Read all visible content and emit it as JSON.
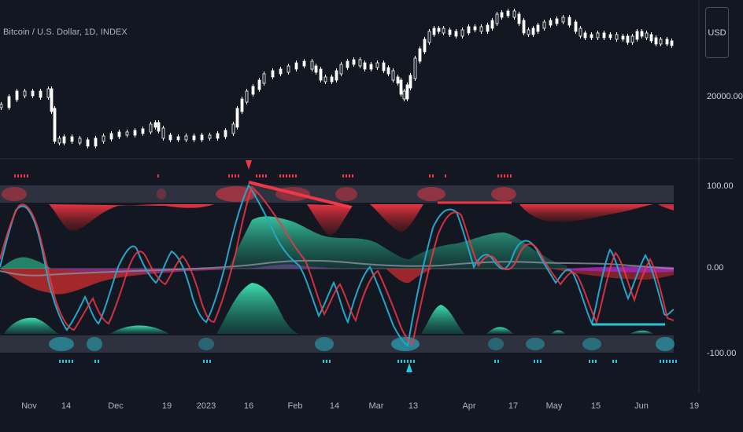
{
  "header": {
    "title": "Bitcoin / U.S. Dollar, 1D, INDEX",
    "currency_button": "USD"
  },
  "price_axis": {
    "label": "20000.00"
  },
  "osc_axis": {
    "labels": [
      "100.00",
      "0.00",
      "-100.00"
    ]
  },
  "time_axis": {
    "ticks": [
      "Nov",
      "14",
      "Dec",
      "19",
      "2023",
      "16",
      "Feb",
      "14",
      "Mar",
      "13",
      "Apr",
      "17",
      "May",
      "15",
      "Jun",
      "19"
    ]
  },
  "colors": {
    "background": "#131722",
    "bull": "#26c6da",
    "bear": "#f23645",
    "teal_fill": "#2ecc9a",
    "purple": "#9c27b0",
    "candles": "#ffffff",
    "grid": "#363a45"
  }
}
